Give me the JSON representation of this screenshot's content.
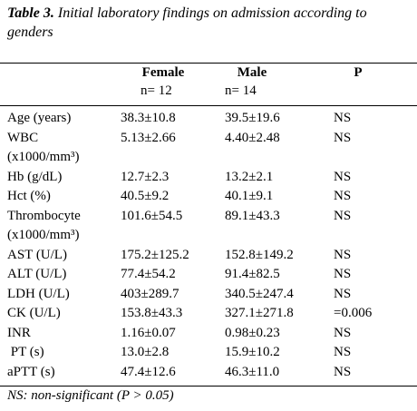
{
  "title": {
    "label": "Table 3.",
    "text": "Initial laboratory findings on admission according to genders"
  },
  "table": {
    "header": [
      {
        "name": "Female",
        "n": "n= 12"
      },
      {
        "name": "Male",
        "n": "n= 14"
      },
      {
        "name": "P"
      }
    ],
    "rows": [
      {
        "label": [
          "Age (years)"
        ],
        "cells": [
          "38.3±10.8",
          "39.5±19.6",
          "NS"
        ]
      },
      {
        "label": [
          "WBC",
          "(x1000/mm³)"
        ],
        "cells": [
          "5.13±2.66",
          "4.40±2.48",
          "NS"
        ]
      },
      {
        "label": [
          "Hb (g/dL)"
        ],
        "cells": [
          "12.7±2.3",
          "13.2±2.1",
          "NS"
        ]
      },
      {
        "label": [
          "Hct (%)"
        ],
        "cells": [
          "40.5±9.2",
          "40.1±9.1",
          "NS"
        ]
      },
      {
        "label": [
          "Thrombocyte",
          "(x1000/mm³)"
        ],
        "cells": [
          "101.6±54.5",
          "89.1±43.3",
          "NS"
        ]
      },
      {
        "label": [
          "AST (U/L)"
        ],
        "cells": [
          "175.2±125.2",
          "152.8±149.2",
          "NS"
        ]
      },
      {
        "label": [
          "ALT (U/L)"
        ],
        "cells": [
          "77.4±54.2",
          "91.4±82.5",
          "NS"
        ]
      },
      {
        "label": [
          "LDH (U/L)"
        ],
        "cells": [
          "403±289.7",
          "340.5±247.4",
          "NS"
        ]
      },
      {
        "label": [
          "CK (U/L)"
        ],
        "cells": [
          "153.8±43.3",
          "327.1±271.8",
          "=0.006"
        ]
      },
      {
        "label": [
          "INR"
        ],
        "cells": [
          "1.16±0.07",
          "0.98±0.23",
          "NS"
        ]
      },
      {
        "label": [
          " PT (s)"
        ],
        "cells": [
          "13.0±2.8",
          "15.9±10.2",
          "NS"
        ]
      },
      {
        "label": [
          "aPTT (s)"
        ],
        "cells": [
          "47.4±12.6",
          "46.3±11.0",
          "NS"
        ]
      }
    ]
  },
  "footnote": "NS: non-significant (P > 0.05)"
}
